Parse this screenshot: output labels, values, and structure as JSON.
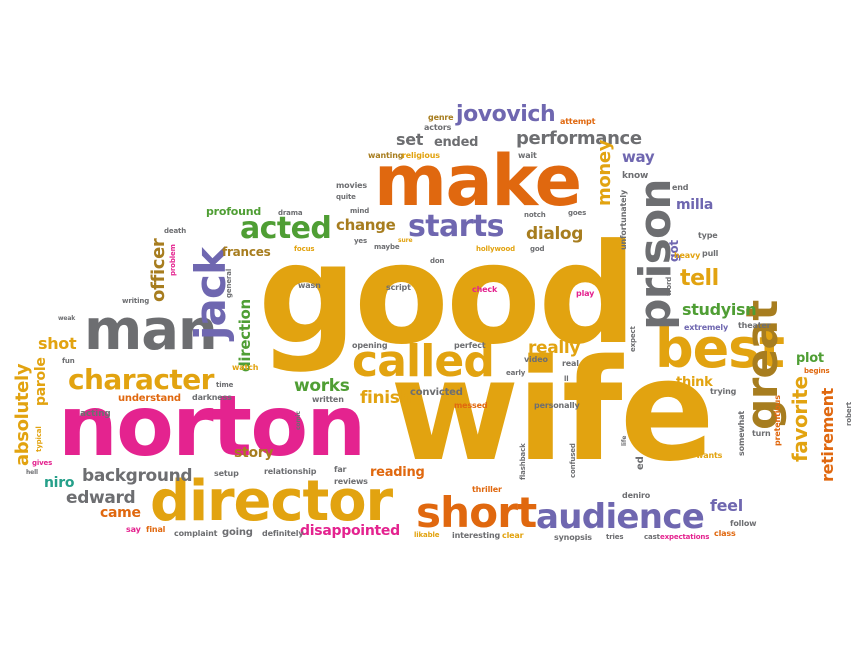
{
  "palette": {
    "amber": "#e2a310",
    "orange": "#e0680f",
    "pink": "#e4238f",
    "gray": "#6d6e71",
    "purple": "#6f67b0",
    "green": "#4f9e34",
    "brown": "#a77d1f",
    "teal": "#26a08a",
    "red": "#d83b2d",
    "olive": "#8d8a2a",
    "dark": "#555555"
  },
  "words": [
    {
      "text": "good",
      "color": "#e2a310"
    },
    {
      "text": "wife",
      "color": "#e2a310"
    },
    {
      "text": "norton",
      "color": "#e4238f"
    },
    {
      "text": "make",
      "color": "#e0680f"
    },
    {
      "text": "director",
      "color": "#e2a310"
    },
    {
      "text": "man",
      "color": "#6d6e71"
    },
    {
      "text": "best",
      "color": "#e2a310"
    },
    {
      "text": "great",
      "color": "#a77d1f"
    },
    {
      "text": "prison",
      "color": "#6d6e71"
    },
    {
      "text": "called",
      "color": "#e2a310"
    },
    {
      "text": "short",
      "color": "#e0680f"
    },
    {
      "text": "audience",
      "color": "#6f67b0"
    },
    {
      "text": "jack",
      "color": "#6f67b0"
    },
    {
      "text": "acted",
      "color": "#4f9e34"
    },
    {
      "text": "starts",
      "color": "#6f67b0"
    },
    {
      "text": "character",
      "color": "#e2a310"
    },
    {
      "text": "jovovich",
      "color": "#6f67b0"
    },
    {
      "text": "performance",
      "color": "#6d6e71"
    },
    {
      "text": "absolutely",
      "color": "#e2a310"
    },
    {
      "text": "background",
      "color": "#6d6e71"
    },
    {
      "text": "edward",
      "color": "#6d6e71"
    },
    {
      "text": "favorite",
      "color": "#e2a310"
    },
    {
      "text": "retirement",
      "color": "#e0680f"
    },
    {
      "text": "officer",
      "color": "#a77d1f"
    },
    {
      "text": "direction",
      "color": "#4f9e34"
    },
    {
      "text": "money",
      "color": "#e2a310"
    },
    {
      "text": "dialog",
      "color": "#a77d1f"
    },
    {
      "text": "change",
      "color": "#a77d1f"
    },
    {
      "text": "tell",
      "color": "#e2a310"
    },
    {
      "text": "studyisn",
      "color": "#4f9e34"
    },
    {
      "text": "really",
      "color": "#e2a310"
    },
    {
      "text": "works",
      "color": "#4f9e34"
    },
    {
      "text": "finish",
      "color": "#e2a310"
    },
    {
      "text": "shot",
      "color": "#e2a310"
    },
    {
      "text": "parole",
      "color": "#e2a310"
    },
    {
      "text": "niro",
      "color": "#26a08a"
    },
    {
      "text": "came",
      "color": "#e0680f"
    },
    {
      "text": "feel",
      "color": "#6f67b0"
    },
    {
      "text": "story",
      "color": "#a77d1f"
    },
    {
      "text": "reading",
      "color": "#e0680f"
    },
    {
      "text": "disappointed",
      "color": "#e4238f"
    },
    {
      "text": "set",
      "color": "#6d6e71"
    },
    {
      "text": "ended",
      "color": "#6d6e71"
    },
    {
      "text": "way",
      "color": "#6f67b0"
    },
    {
      "text": "milla",
      "color": "#6f67b0"
    },
    {
      "text": "frances",
      "color": "#a77d1f"
    },
    {
      "text": "profound",
      "color": "#4f9e34"
    },
    {
      "text": "plot",
      "color": "#4f9e34"
    },
    {
      "text": "think",
      "color": "#e2a310"
    },
    {
      "text": "got",
      "color": "#6f67b0"
    },
    {
      "text": "convicted",
      "color": "#6d6e71"
    },
    {
      "text": "understand",
      "color": "#e0680f"
    },
    {
      "text": "acting",
      "color": "#6d6e71"
    },
    {
      "text": "movies",
      "color": "#6d6e71"
    },
    {
      "text": "wanting",
      "color": "#a77d1f"
    },
    {
      "text": "religious",
      "color": "#e2a310"
    },
    {
      "text": "actors",
      "color": "#6d6e71"
    },
    {
      "text": "genre",
      "color": "#a77d1f"
    },
    {
      "text": "attempt",
      "color": "#e0680f"
    },
    {
      "text": "wait",
      "color": "#6d6e71"
    },
    {
      "text": "know",
      "color": "#6d6e71"
    },
    {
      "text": "unfortunately",
      "color": "#6d6e71"
    },
    {
      "text": "end",
      "color": "#6d6e71"
    },
    {
      "text": "type",
      "color": "#6d6e71"
    },
    {
      "text": "pull",
      "color": "#6d6e71"
    },
    {
      "text": "heavy",
      "color": "#e2a310"
    },
    {
      "text": "word",
      "color": "#6d6e71"
    },
    {
      "text": "extremely",
      "color": "#6f67b0"
    },
    {
      "text": "theater",
      "color": "#6d6e71"
    },
    {
      "text": "trying",
      "color": "#6d6e71"
    },
    {
      "text": "begins",
      "color": "#e0680f"
    },
    {
      "text": "robert",
      "color": "#6d6e71"
    },
    {
      "text": "pretentious",
      "color": "#e0680f"
    },
    {
      "text": "somewhat",
      "color": "#6d6e71"
    },
    {
      "text": "turn",
      "color": "#6d6e71"
    },
    {
      "text": "wants",
      "color": "#e2a310"
    },
    {
      "text": "follow",
      "color": "#6d6e71"
    },
    {
      "text": "class",
      "color": "#e0680f"
    },
    {
      "text": "expectations",
      "color": "#e4238f"
    },
    {
      "text": "cast",
      "color": "#6d6e71"
    },
    {
      "text": "tries",
      "color": "#6d6e71"
    },
    {
      "text": "synopsis",
      "color": "#6d6e71"
    },
    {
      "text": "clear",
      "color": "#e2a310"
    },
    {
      "text": "interesting",
      "color": "#6d6e71"
    },
    {
      "text": "likable",
      "color": "#e2a310"
    },
    {
      "text": "definitely",
      "color": "#6d6e71"
    },
    {
      "text": "going",
      "color": "#6d6e71"
    },
    {
      "text": "complaint",
      "color": "#6d6e71"
    },
    {
      "text": "final",
      "color": "#e0680f"
    },
    {
      "text": "say",
      "color": "#e4238f"
    },
    {
      "text": "hell",
      "color": "#6d6e71"
    },
    {
      "text": "gives",
      "color": "#e4238f"
    },
    {
      "text": "typical",
      "color": "#e2a310"
    },
    {
      "text": "fun",
      "color": "#6d6e71"
    },
    {
      "text": "weak",
      "color": "#6d6e71"
    },
    {
      "text": "writing",
      "color": "#6d6e71"
    },
    {
      "text": "problem",
      "color": "#e4238f"
    },
    {
      "text": "general",
      "color": "#6d6e71"
    },
    {
      "text": "death",
      "color": "#6d6e71"
    },
    {
      "text": "drama",
      "color": "#6d6e71"
    },
    {
      "text": "focus",
      "color": "#e2a310"
    },
    {
      "text": "mind",
      "color": "#6d6e71"
    },
    {
      "text": "quite",
      "color": "#6d6e71"
    },
    {
      "text": "yes",
      "color": "#6d6e71"
    },
    {
      "text": "maybe",
      "color": "#6d6e71"
    },
    {
      "text": "sure",
      "color": "#e2a310"
    },
    {
      "text": "notch",
      "color": "#6d6e71"
    },
    {
      "text": "goes",
      "color": "#6d6e71"
    },
    {
      "text": "hollywood",
      "color": "#e2a310"
    },
    {
      "text": "god",
      "color": "#6d6e71"
    },
    {
      "text": "don",
      "color": "#6d6e71"
    },
    {
      "text": "wasn",
      "color": "#6d6e71"
    },
    {
      "text": "script",
      "color": "#6d6e71"
    },
    {
      "text": "check",
      "color": "#e4238f"
    },
    {
      "text": "play",
      "color": "#e4238f"
    },
    {
      "text": "expect",
      "color": "#6d6e71"
    },
    {
      "text": "perfect",
      "color": "#6d6e71"
    },
    {
      "text": "opening",
      "color": "#6d6e71"
    },
    {
      "text": "video",
      "color": "#6d6e71"
    },
    {
      "text": "real",
      "color": "#6d6e71"
    },
    {
      "text": "early",
      "color": "#6d6e71"
    },
    {
      "text": "personally",
      "color": "#6d6e71"
    },
    {
      "text": "messed",
      "color": "#e0680f"
    },
    {
      "text": "written",
      "color": "#6d6e71"
    },
    {
      "text": "watch",
      "color": "#e2a310"
    },
    {
      "text": "darkness",
      "color": "#6d6e71"
    },
    {
      "text": "time",
      "color": "#6d6e71"
    },
    {
      "text": "relationship",
      "color": "#6d6e71"
    },
    {
      "text": "setup",
      "color": "#6d6e71"
    },
    {
      "text": "comic",
      "color": "#6d6e71"
    },
    {
      "text": "far",
      "color": "#6d6e71"
    },
    {
      "text": "reviews",
      "color": "#6d6e71"
    },
    {
      "text": "thriller",
      "color": "#e0680f"
    },
    {
      "text": "flashback",
      "color": "#6d6e71"
    },
    {
      "text": "confused",
      "color": "#6d6e71"
    },
    {
      "text": "ed",
      "color": "#6d6e71"
    },
    {
      "text": "life",
      "color": "#6d6e71"
    },
    {
      "text": "deniro",
      "color": "#6d6e71"
    },
    {
      "text": "ll",
      "color": "#6d6e71"
    }
  ]
}
